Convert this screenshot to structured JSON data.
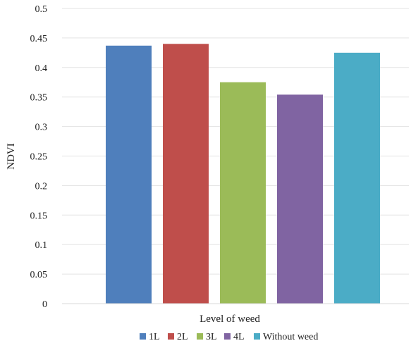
{
  "chart_data": {
    "type": "bar",
    "title": "",
    "xlabel": "Level of weed",
    "ylabel": "NDVI",
    "ylim": [
      0,
      0.5
    ],
    "yticks": [
      "0",
      "0.05",
      "0.1",
      "0.15",
      "0.2",
      "0.25",
      "0.3",
      "0.35",
      "0.4",
      "0.45",
      "0.5"
    ],
    "grid": true,
    "legend_position": "bottom",
    "series": [
      {
        "name": "1L",
        "value": 0.437,
        "color": "#4f7fbc"
      },
      {
        "name": "2L",
        "value": 0.44,
        "color": "#bf4e4b"
      },
      {
        "name": "3L",
        "value": 0.375,
        "color": "#9bbb58"
      },
      {
        "name": "4L",
        "value": 0.354,
        "color": "#8064a2"
      },
      {
        "name": "Without weed",
        "value": 0.425,
        "color": "#4bacc6"
      }
    ]
  }
}
